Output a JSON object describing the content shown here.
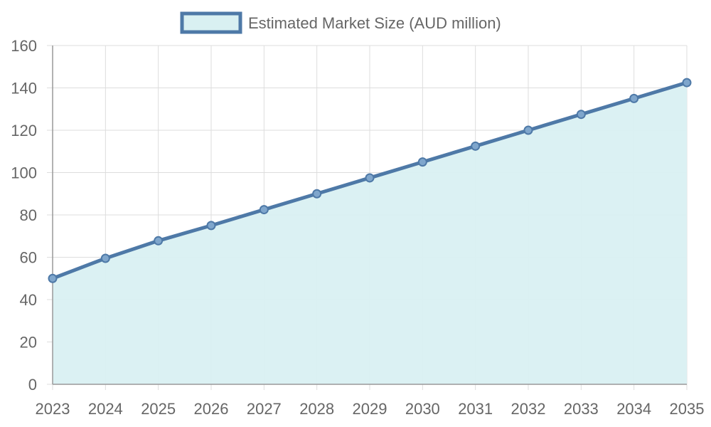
{
  "chart_data": {
    "type": "area",
    "title": "",
    "xlabel": "",
    "ylabel": "",
    "x": [
      2023,
      2024,
      2025,
      2026,
      2027,
      2028,
      2029,
      2030,
      2031,
      2032,
      2033,
      2034,
      2035
    ],
    "series": [
      {
        "name": "Estimated Market Size (AUD million)",
        "values": [
          50,
          59.5,
          67.8,
          75,
          82.5,
          90,
          97.5,
          105,
          112.5,
          120,
          127.5,
          135,
          142.5
        ]
      }
    ],
    "ylim": [
      0,
      160
    ],
    "yticks": [
      0,
      20,
      40,
      60,
      80,
      100,
      120,
      140,
      160
    ],
    "grid": true,
    "legend_position": "top-center",
    "colors": {
      "line": "#4e79a7",
      "fill": "#d9f0f2",
      "marker_fill": "#7fa6cc",
      "grid": "#dddddd",
      "axis": "#999999",
      "text": "#666666"
    }
  }
}
